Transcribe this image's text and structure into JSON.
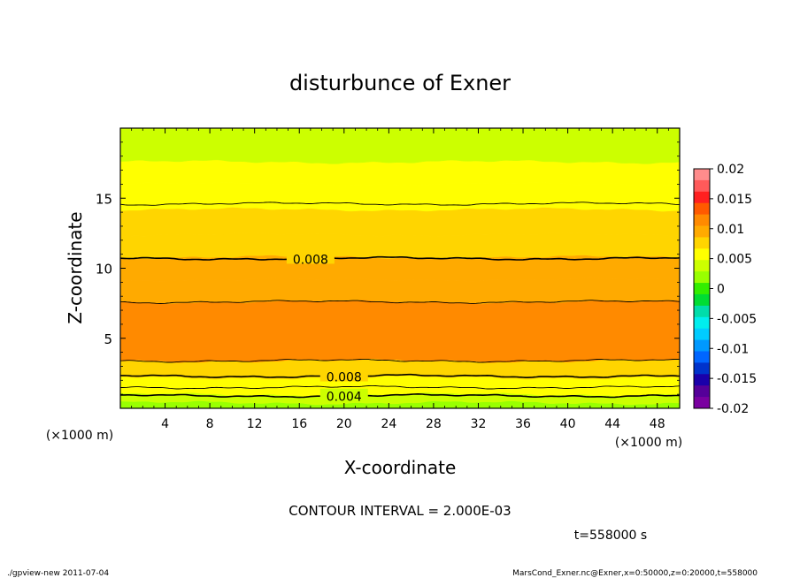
{
  "chart_data": {
    "type": "contour",
    "title": "disturbunce of Exner",
    "xlabel": "X-coordinate",
    "ylabel": "Z-coordinate",
    "x_unit_left": "(×1000 m)",
    "x_unit_right": "(×1000 m)",
    "xlim": [
      0,
      50
    ],
    "ylim": [
      0,
      20
    ],
    "xticks": [
      4,
      8,
      12,
      16,
      20,
      24,
      28,
      32,
      36,
      40,
      44,
      48
    ],
    "yticks": [
      5,
      10,
      15
    ],
    "colorbar": {
      "ticks": [
        "0.02",
        "0.015",
        "0.01",
        "0.005",
        "0",
        "-0.005",
        "-0.01",
        "-0.015",
        "-0.02"
      ],
      "range": [
        -0.02,
        0.02
      ],
      "colors": [
        "#ff8c8c",
        "#ff5a5a",
        "#ff2020",
        "#ff5a00",
        "#ff8a00",
        "#ffaa00",
        "#ffd500",
        "#ffff00",
        "#ccff00",
        "#99ff00",
        "#33ee00",
        "#00dd33",
        "#00ddaa",
        "#00eeee",
        "#00ccff",
        "#0099ff",
        "#0066ff",
        "#0033cc",
        "#1a00aa",
        "#550099",
        "#7a00a0"
      ]
    },
    "levels_profile": [
      {
        "z_from": 0.0,
        "z_to": 0.4,
        "value": 0.0021
      },
      {
        "z_from": 0.4,
        "z_to": 1.0,
        "value": 0.0035
      },
      {
        "z_from": 1.0,
        "z_to": 1.6,
        "value": 0.0052
      },
      {
        "z_from": 1.6,
        "z_to": 2.2,
        "value": 0.0063
      },
      {
        "z_from": 2.2,
        "z_to": 2.8,
        "value": 0.0072
      },
      {
        "z_from": 2.8,
        "z_to": 3.4,
        "value": 0.0083
      },
      {
        "z_from": 3.4,
        "z_to": 7.6,
        "value": 0.0105
      },
      {
        "z_from": 7.6,
        "z_to": 9.2,
        "value": 0.0093
      },
      {
        "z_from": 9.2,
        "z_to": 10.8,
        "value": 0.0087
      },
      {
        "z_from": 10.8,
        "z_to": 12.4,
        "value": 0.0078
      },
      {
        "z_from": 12.4,
        "z_to": 14.2,
        "value": 0.0068
      },
      {
        "z_from": 14.2,
        "z_to": 16.0,
        "value": 0.0057
      },
      {
        "z_from": 16.0,
        "z_to": 17.6,
        "value": 0.0049
      },
      {
        "z_from": 17.6,
        "z_to": 20.0,
        "value": 0.0041
      }
    ],
    "contour_lines": [
      {
        "z": 0.9,
        "label": "0.004",
        "label_x": 20,
        "thick": true
      },
      {
        "z": 2.3,
        "label": "0.008",
        "label_x": 20,
        "thick": true
      },
      {
        "z": 10.7,
        "label": "0.008",
        "label_x": 17,
        "thick": true
      },
      {
        "z": 1.5,
        "label": "",
        "label_x": 0,
        "thick": false
      },
      {
        "z": 3.4,
        "label": "",
        "label_x": 0,
        "thick": false
      },
      {
        "z": 7.6,
        "label": "",
        "label_x": 0,
        "thick": false
      },
      {
        "z": 14.6,
        "label": "",
        "label_x": 0,
        "thick": false
      }
    ],
    "blobs": [
      {
        "x": 0.5,
        "z": 5.2,
        "rx": 1.2,
        "rz": 0.6
      },
      {
        "x": 8.0,
        "z": 5.2,
        "rx": 2.2,
        "rz": 0.5
      },
      {
        "x": 22.0,
        "z": 5.0,
        "rx": 3.5,
        "rz": 0.45
      },
      {
        "x": 28.0,
        "z": 5.0,
        "rx": 5.0,
        "rz": 0.4
      },
      {
        "x": 45.8,
        "z": 5.3,
        "rx": 1.6,
        "rz": 0.6
      }
    ]
  },
  "annotations": {
    "contour_interval": "CONTOUR INTERVAL = 2.000E-03",
    "time": "t=558000 s",
    "footer_left": "./gpview-new  2011-07-04",
    "footer_right": "MarsCond_Exner.nc@Exner,x=0:50000,z=0:20000,t=558000"
  }
}
